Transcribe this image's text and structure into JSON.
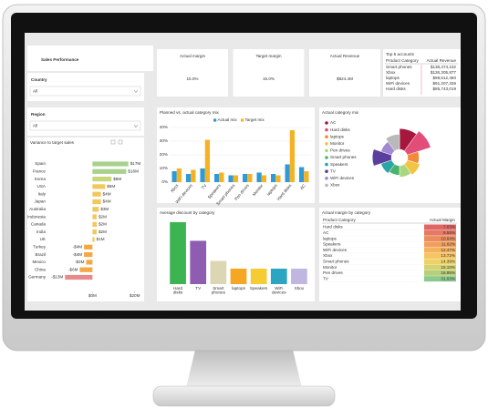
{
  "header": {
    "title": "Sales Performance"
  },
  "slicers": [
    {
      "label": "Country",
      "value": "All"
    },
    {
      "label": "Region",
      "value": "All"
    }
  ],
  "cards": [
    {
      "title": "Actual margin",
      "value": "15.0%"
    },
    {
      "title": "Target margin",
      "value": "16.0%"
    },
    {
      "title": "Actual Revenue",
      "value": "$824.4M"
    }
  ],
  "top_accounts": {
    "title": "Top 5 accounts",
    "columns": [
      "Product Category",
      "Actual Revenue"
    ],
    "rows": [
      [
        "Smart phones",
        "$138,474,102"
      ],
      [
        "Xbox",
        "$126,305,877"
      ],
      [
        "laptops",
        "$98,612,450"
      ],
      [
        "WiFi devices",
        "$91,207,336"
      ],
      [
        "Hard disks",
        "$85,743,019"
      ]
    ]
  },
  "margin_table": {
    "title": "Actual margin by category",
    "columns": [
      "Product Category",
      "Actual Margin"
    ],
    "rows": [
      [
        "Hard disks",
        "7.03%"
      ],
      [
        "AC",
        "9.55%"
      ],
      [
        "laptops",
        "10.64%"
      ],
      [
        "Speakers",
        "11.02%"
      ],
      [
        "WiFi devices",
        "12.47%"
      ],
      [
        "Xbox",
        "13.72%"
      ],
      [
        "Smart phones",
        "14.39%"
      ],
      [
        "Monitor",
        "15.10%"
      ],
      [
        "Pen drives",
        "16.95%"
      ],
      [
        "TV",
        "31.03%"
      ]
    ],
    "cell_colors": [
      "#e06666",
      "#e57a62",
      "#ea8c5e",
      "#f09e5a",
      "#f4b25c",
      "#f6c560",
      "#efd266",
      "#d6d26e",
      "#b6cf7a",
      "#8cc98c"
    ]
  },
  "chart_data": [
    {
      "type": "bar",
      "orientation": "horizontal",
      "title": "Variance to target sales",
      "categories": [
        "Spain",
        "France",
        "Korea",
        "USA",
        "Italy",
        "Japan",
        "Australia",
        "Indonesia",
        "Canada",
        "India",
        "UK",
        "Turkey",
        "Brazil",
        "Mexico",
        "China",
        "Germany"
      ],
      "values": [
        17,
        16,
        9,
        6,
        4,
        4,
        3,
        2,
        2,
        2,
        1,
        -4,
        -4,
        -3,
        -6,
        -13
      ],
      "value_labels": [
        "$17M",
        "$16M",
        "$9M",
        "$6M",
        "$4M",
        "$4M",
        "$3M",
        "$2M",
        "$2M",
        "$2M",
        "$1M",
        "-$4M",
        "-$4M",
        "-$3M",
        "-$6M",
        "-$13M"
      ],
      "colors": [
        "#a9d18e",
        "#a9d18e",
        "#c9d67a",
        "#f2c75c",
        "#f2c75c",
        "#f2c75c",
        "#f2c75c",
        "#f2c75c",
        "#f2c75c",
        "#f2c75c",
        "#f2c75c",
        "#f4a742",
        "#f4a742",
        "#f4a742",
        "#f4a742",
        "#e88a8a"
      ],
      "xlim": [
        -17,
        21
      ],
      "xticks": [
        {
          "value": 0,
          "label": "$0M"
        },
        {
          "value": 20,
          "label": "$20M"
        }
      ]
    },
    {
      "type": "bar",
      "title": "Planned vs. actual category mix",
      "categories": [
        "Xbox",
        "WiFi devices",
        "TV",
        "Speakers",
        "Smart phones",
        "Pen drives",
        "Monitor",
        "laptops",
        "Hard disks",
        "AC"
      ],
      "series": [
        {
          "name": "Actual mix",
          "color": "#2e9bd6",
          "values": [
            8,
            6,
            10,
            6,
            5,
            6,
            7,
            6,
            13,
            11
          ]
        },
        {
          "name": "Target mix",
          "color": "#f5b324",
          "values": [
            10,
            9,
            31,
            7,
            5,
            6,
            5,
            5,
            38,
            8
          ]
        }
      ],
      "ylim": [
        0,
        40
      ],
      "yticks": [
        {
          "value": 0,
          "label": "0%"
        },
        {
          "value": 10,
          "label": "10%"
        },
        {
          "value": 20,
          "label": "20%"
        },
        {
          "value": 30,
          "label": "30%"
        },
        {
          "value": 40,
          "label": "40%"
        }
      ],
      "grid": true
    },
    {
      "type": "rose",
      "title": "Actual category mix",
      "categories": [
        "AC",
        "Hard disks",
        "laptops",
        "Monitor",
        "Pen drives",
        "Smart phones",
        "Speakers",
        "TV",
        "WiFi devices",
        "Xbox"
      ],
      "values": [
        11,
        13,
        6,
        7,
        6,
        5,
        6,
        10,
        6,
        8
      ],
      "colors": [
        "#a5173c",
        "#e34d7a",
        "#f28a3c",
        "#f5c342",
        "#a8d77f",
        "#4cb36b",
        "#2ba5a5",
        "#5b3f9e",
        "#a18ad1",
        "#b9b9b9"
      ]
    },
    {
      "type": "bar",
      "title": "Average discount by category",
      "categories": [
        "Hard disks",
        "TV",
        "Smart phones",
        "laptops",
        "Speakers",
        "WiFi devices",
        "Xbox"
      ],
      "values": [
        4.0,
        2.8,
        1.5,
        1.0,
        1.0,
        1.0,
        1.0
      ],
      "colors": [
        "#3cb452",
        "#8e5db2",
        "#ddd6b4",
        "#f5a623",
        "#f6cc35",
        "#2ba5c0",
        "#c0b6e0"
      ]
    }
  ]
}
